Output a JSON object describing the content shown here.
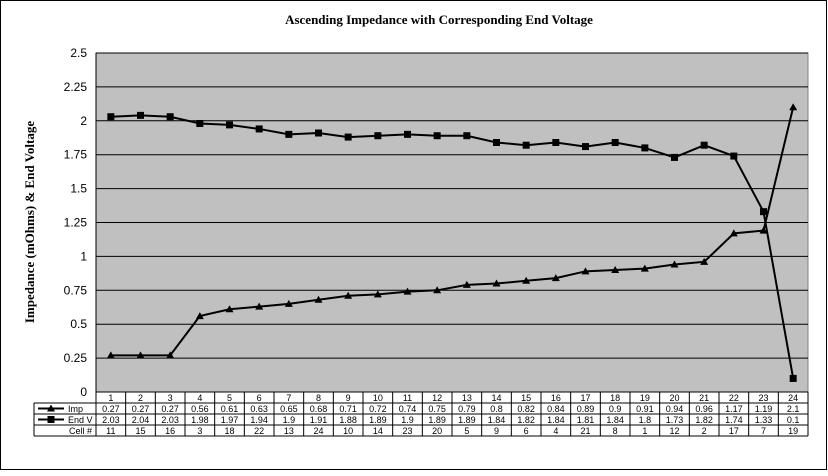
{
  "chart_data": {
    "type": "line",
    "title": "Ascending Impedance with Corresponding End Voltage",
    "xlabel": "",
    "ylabel": "Impedance (mOhms) & End Voltage",
    "ylim": [
      0,
      2.5
    ],
    "yticks": [
      "0",
      "0.25",
      "0.5",
      "0.75",
      "1",
      "1.25",
      "1.5",
      "1.75",
      "2",
      "2.25",
      "2.5"
    ],
    "grid": true,
    "legend": "data-table",
    "colors": {
      "plot_bg": "#c0c0c0",
      "line": "#000000"
    },
    "categories": [
      "1",
      "2",
      "3",
      "4",
      "5",
      "6",
      "7",
      "8",
      "9",
      "10",
      "11",
      "12",
      "13",
      "14",
      "15",
      "16",
      "17",
      "18",
      "19",
      "20",
      "21",
      "22",
      "23",
      "24"
    ],
    "series": [
      {
        "name": "Imp",
        "marker": "triangle",
        "values": [
          0.27,
          0.27,
          0.27,
          0.56,
          0.61,
          0.63,
          0.65,
          0.68,
          0.71,
          0.72,
          0.74,
          0.75,
          0.79,
          0.8,
          0.82,
          0.84,
          0.89,
          0.9,
          0.91,
          0.94,
          0.96,
          1.17,
          1.19,
          2.1
        ]
      },
      {
        "name": "End V",
        "marker": "square",
        "values": [
          2.03,
          2.04,
          2.03,
          1.98,
          1.97,
          1.94,
          1.9,
          1.91,
          1.88,
          1.89,
          1.9,
          1.89,
          1.89,
          1.84,
          1.82,
          1.84,
          1.81,
          1.84,
          1.8,
          1.73,
          1.82,
          1.74,
          1.33,
          0.1
        ]
      }
    ],
    "table_row_label": "Cell #",
    "cell_numbers": [
      "11",
      "15",
      "16",
      "3",
      "18",
      "22",
      "13",
      "24",
      "10",
      "14",
      "23",
      "20",
      "5",
      "9",
      "6",
      "4",
      "21",
      "8",
      "1",
      "12",
      "2",
      "17",
      "7",
      "19"
    ]
  }
}
